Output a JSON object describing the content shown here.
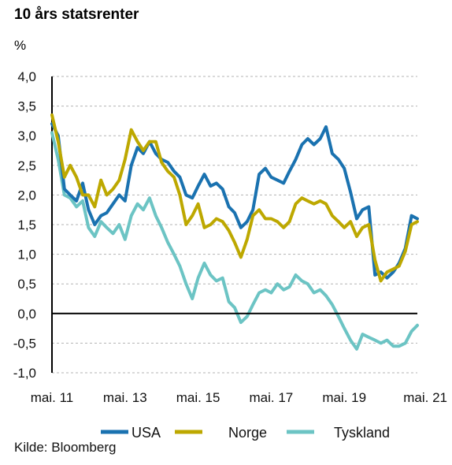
{
  "chart_data": {
    "type": "line",
    "title": "10 års statsrenter",
    "ylabel": "%",
    "xlabel": "",
    "source": "Kilde: Bloomberg",
    "ylim": [
      -1.0,
      4.0
    ],
    "yticks": [
      "4,0",
      "3,5",
      "3,0",
      "2,5",
      "2,0",
      "1,5",
      "1,0",
      "0,5",
      "0,0",
      "-0,5",
      "-1,0"
    ],
    "ytick_values": [
      4.0,
      3.5,
      3.0,
      2.5,
      2.0,
      1.5,
      1.0,
      0.5,
      0.0,
      -0.5,
      -1.0
    ],
    "xticks": [
      "mai. 11",
      "mai. 13",
      "mai. 15",
      "mai. 17",
      "mai. 19",
      "mai. 21"
    ],
    "xtick_values": [
      2011.33,
      2013.33,
      2015.33,
      2017.33,
      2019.33,
      2021.33
    ],
    "xlim": [
      2011.33,
      2021.33
    ],
    "gridlines": "horizontal dashed",
    "legend_position": "bottom",
    "colors": {
      "USA": "#1a72b0",
      "Norge": "#bda800",
      "Tyskland": "#6cc4c4"
    },
    "series": [
      {
        "name": "USA",
        "x": [
          2011.33,
          2011.5,
          2011.67,
          2011.83,
          2012.0,
          2012.17,
          2012.33,
          2012.5,
          2012.67,
          2012.83,
          2013.0,
          2013.17,
          2013.33,
          2013.5,
          2013.67,
          2013.83,
          2014.0,
          2014.17,
          2014.33,
          2014.5,
          2014.67,
          2014.83,
          2015.0,
          2015.17,
          2015.33,
          2015.5,
          2015.67,
          2015.83,
          2016.0,
          2016.17,
          2016.33,
          2016.5,
          2016.67,
          2016.83,
          2017.0,
          2017.17,
          2017.33,
          2017.5,
          2017.67,
          2017.83,
          2018.0,
          2018.17,
          2018.33,
          2018.5,
          2018.67,
          2018.83,
          2019.0,
          2019.17,
          2019.33,
          2019.5,
          2019.67,
          2019.83,
          2020.0,
          2020.17,
          2020.33,
          2020.5,
          2020.67,
          2020.83,
          2021.0,
          2021.17,
          2021.33
        ],
        "values": [
          3.2,
          3.0,
          2.1,
          2.0,
          1.9,
          2.2,
          1.75,
          1.5,
          1.65,
          1.7,
          1.85,
          2.0,
          1.9,
          2.5,
          2.8,
          2.7,
          2.9,
          2.7,
          2.6,
          2.55,
          2.4,
          2.3,
          2.0,
          1.95,
          2.15,
          2.35,
          2.15,
          2.2,
          2.1,
          1.8,
          1.7,
          1.45,
          1.55,
          1.75,
          2.35,
          2.45,
          2.3,
          2.25,
          2.2,
          2.4,
          2.6,
          2.85,
          2.95,
          2.85,
          2.95,
          3.15,
          2.7,
          2.6,
          2.45,
          2.05,
          1.6,
          1.75,
          1.8,
          0.65,
          0.7,
          0.6,
          0.7,
          0.85,
          1.1,
          1.65,
          1.6
        ]
      },
      {
        "name": "Norge",
        "x": [
          2011.33,
          2011.5,
          2011.67,
          2011.83,
          2012.0,
          2012.17,
          2012.33,
          2012.5,
          2012.67,
          2012.83,
          2013.0,
          2013.17,
          2013.33,
          2013.5,
          2013.67,
          2013.83,
          2014.0,
          2014.17,
          2014.33,
          2014.5,
          2014.67,
          2014.83,
          2015.0,
          2015.17,
          2015.33,
          2015.5,
          2015.67,
          2015.83,
          2016.0,
          2016.17,
          2016.33,
          2016.5,
          2016.67,
          2016.83,
          2017.0,
          2017.17,
          2017.33,
          2017.5,
          2017.67,
          2017.83,
          2018.0,
          2018.17,
          2018.33,
          2018.5,
          2018.67,
          2018.83,
          2019.0,
          2019.17,
          2019.33,
          2019.5,
          2019.67,
          2019.83,
          2020.0,
          2020.17,
          2020.33,
          2020.5,
          2020.67,
          2020.83,
          2021.0,
          2021.17,
          2021.33
        ],
        "values": [
          3.35,
          2.9,
          2.3,
          2.5,
          2.3,
          2.0,
          2.0,
          1.8,
          2.25,
          2.0,
          2.1,
          2.25,
          2.6,
          3.1,
          2.9,
          2.75,
          2.9,
          2.9,
          2.55,
          2.4,
          2.3,
          2.0,
          1.5,
          1.65,
          1.85,
          1.45,
          1.5,
          1.6,
          1.55,
          1.4,
          1.2,
          0.95,
          1.25,
          1.65,
          1.75,
          1.6,
          1.6,
          1.55,
          1.45,
          1.55,
          1.85,
          1.95,
          1.9,
          1.85,
          1.9,
          1.85,
          1.65,
          1.55,
          1.45,
          1.55,
          1.3,
          1.45,
          1.5,
          0.9,
          0.55,
          0.7,
          0.75,
          0.8,
          1.05,
          1.5,
          1.55
        ]
      },
      {
        "name": "Tyskland",
        "x": [
          2011.33,
          2011.5,
          2011.67,
          2011.83,
          2012.0,
          2012.17,
          2012.33,
          2012.5,
          2012.67,
          2012.83,
          2013.0,
          2013.17,
          2013.33,
          2013.5,
          2013.67,
          2013.83,
          2014.0,
          2014.17,
          2014.33,
          2014.5,
          2014.67,
          2014.83,
          2015.0,
          2015.17,
          2015.33,
          2015.5,
          2015.67,
          2015.83,
          2016.0,
          2016.17,
          2016.33,
          2016.5,
          2016.67,
          2016.83,
          2017.0,
          2017.17,
          2017.33,
          2017.5,
          2017.67,
          2017.83,
          2018.0,
          2018.17,
          2018.33,
          2018.5,
          2018.67,
          2018.83,
          2019.0,
          2019.17,
          2019.33,
          2019.5,
          2019.67,
          2019.83,
          2020.0,
          2020.17,
          2020.33,
          2020.5,
          2020.67,
          2020.83,
          2021.0,
          2021.17,
          2021.33
        ],
        "values": [
          3.05,
          2.6,
          2.0,
          1.95,
          1.8,
          1.9,
          1.45,
          1.3,
          1.55,
          1.45,
          1.35,
          1.5,
          1.25,
          1.65,
          1.85,
          1.75,
          1.95,
          1.65,
          1.45,
          1.2,
          1.0,
          0.8,
          0.5,
          0.25,
          0.6,
          0.85,
          0.65,
          0.55,
          0.6,
          0.2,
          0.1,
          -0.15,
          -0.05,
          0.15,
          0.35,
          0.4,
          0.35,
          0.5,
          0.4,
          0.45,
          0.65,
          0.55,
          0.5,
          0.35,
          0.4,
          0.3,
          0.15,
          -0.05,
          -0.25,
          -0.45,
          -0.6,
          -0.35,
          -0.4,
          -0.45,
          -0.5,
          -0.45,
          -0.55,
          -0.55,
          -0.5,
          -0.3,
          -0.2
        ]
      }
    ]
  }
}
